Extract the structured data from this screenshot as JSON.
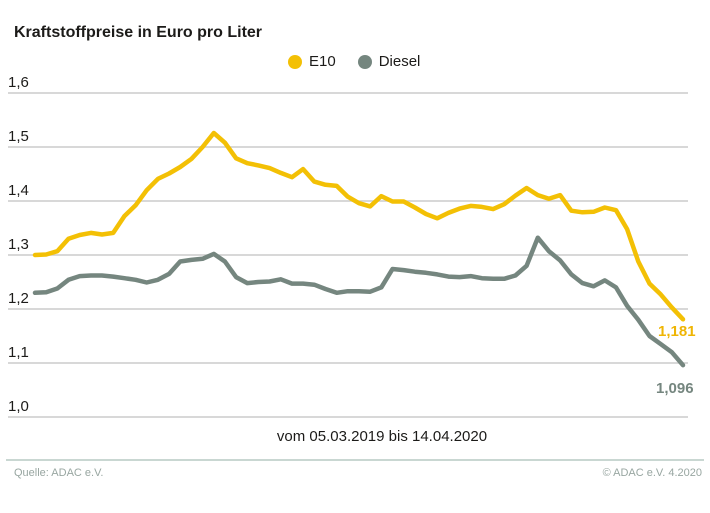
{
  "title": "Kraftstoffpreise in Euro pro Liter",
  "footer": {
    "source": "Quelle: ADAC e.V.",
    "copyright": "© ADAC e.V. 4.2020"
  },
  "palette": {
    "e10": "#f3c005",
    "diesel": "#75867f",
    "grid": "#cbcbcb",
    "text": "#1c1b19",
    "footer_text": "#98a6a1",
    "divider": "#c9d7d2"
  },
  "chart_data": {
    "type": "line",
    "title": "Kraftstoffpreise in Euro pro Liter",
    "xlabel": "vom 05.03.2019 bis 14.04.2020",
    "ylabel": "Euro pro Liter",
    "ylim": [
      1.0,
      1.6
    ],
    "grid": true,
    "legend_position": "top",
    "y_ticks": [
      1.6,
      1.5,
      1.4,
      1.3,
      1.2,
      1.1,
      1.0
    ],
    "y_tick_labels": [
      "1,6",
      "1,5",
      "1,4",
      "1,3",
      "1,2",
      "1,1",
      "1,0"
    ],
    "x_start": "05.03.2019",
    "x_end": "14.04.2020",
    "x_interval": "weekly",
    "series": [
      {
        "name": "E10",
        "color": "#f3c005",
        "end_label": "1,181",
        "end_value": 1.181,
        "values": [
          1.3,
          1.301,
          1.307,
          1.33,
          1.337,
          1.341,
          1.338,
          1.341,
          1.372,
          1.392,
          1.42,
          1.441,
          1.451,
          1.463,
          1.478,
          1.5,
          1.526,
          1.508,
          1.479,
          1.47,
          1.466,
          1.461,
          1.452,
          1.444,
          1.459,
          1.436,
          1.43,
          1.428,
          1.408,
          1.396,
          1.39,
          1.409,
          1.399,
          1.399,
          1.388,
          1.376,
          1.368,
          1.378,
          1.386,
          1.391,
          1.389,
          1.385,
          1.394,
          1.41,
          1.424,
          1.411,
          1.404,
          1.411,
          1.382,
          1.379,
          1.38,
          1.388,
          1.383,
          1.348,
          1.288,
          1.247,
          1.227,
          1.203,
          1.181
        ]
      },
      {
        "name": "Diesel",
        "color": "#75867f",
        "end_label": "1,096",
        "end_value": 1.096,
        "values": [
          1.23,
          1.231,
          1.238,
          1.254,
          1.261,
          1.262,
          1.262,
          1.26,
          1.257,
          1.254,
          1.249,
          1.254,
          1.265,
          1.288,
          1.291,
          1.293,
          1.302,
          1.288,
          1.259,
          1.248,
          1.25,
          1.251,
          1.255,
          1.247,
          1.247,
          1.245,
          1.237,
          1.23,
          1.233,
          1.233,
          1.232,
          1.24,
          1.274,
          1.272,
          1.269,
          1.267,
          1.264,
          1.26,
          1.259,
          1.261,
          1.257,
          1.256,
          1.256,
          1.262,
          1.28,
          1.332,
          1.307,
          1.29,
          1.264,
          1.248,
          1.242,
          1.253,
          1.24,
          1.206,
          1.18,
          1.15,
          1.135,
          1.12,
          1.096
        ]
      }
    ]
  }
}
